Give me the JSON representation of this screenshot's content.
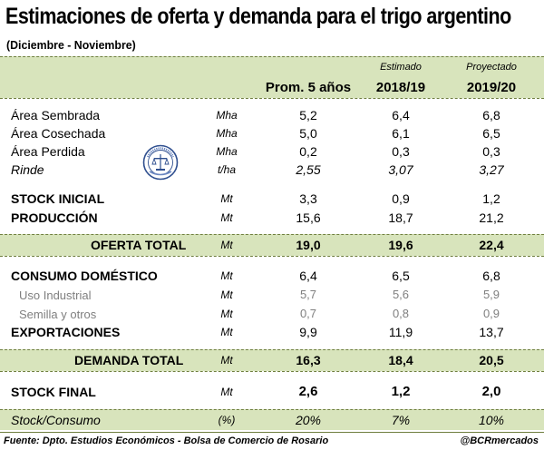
{
  "title": "Estimaciones de oferta y demanda para el trigo argentino",
  "subtitle": "(Diciembre - Noviembre)",
  "columns": {
    "c1": {
      "top": "",
      "main": "Prom. 5 años"
    },
    "c2": {
      "top": "Estimado",
      "main": "2018/19"
    },
    "c3": {
      "top": "Proyectado",
      "main": "2019/20"
    }
  },
  "rows": {
    "area_sembrada": {
      "label": "Área Sembrada",
      "unit": "Mha",
      "v1": "5,2",
      "v2": "6,4",
      "v3": "6,8"
    },
    "area_cosechada": {
      "label": "Área Cosechada",
      "unit": "Mha",
      "v1": "5,0",
      "v2": "6,1",
      "v3": "6,5"
    },
    "area_perdida": {
      "label": "Área Perdida",
      "unit": "Mha",
      "v1": "0,2",
      "v2": "0,3",
      "v3": "0,3"
    },
    "rinde": {
      "label": "Rinde",
      "unit": "t/ha",
      "v1": "2,55",
      "v2": "3,07",
      "v3": "3,27"
    },
    "stock_inicial": {
      "label": "STOCK INICIAL",
      "unit": "Mt",
      "v1": "3,3",
      "v2": "0,9",
      "v3": "1,2"
    },
    "produccion": {
      "label": "PRODUCCIÓN",
      "unit": "Mt",
      "v1": "15,6",
      "v2": "18,7",
      "v3": "21,2"
    },
    "oferta_total": {
      "label": "OFERTA TOTAL",
      "unit": "Mt",
      "v1": "19,0",
      "v2": "19,6",
      "v3": "22,4"
    },
    "consumo_domestico": {
      "label": "CONSUMO DOMÉSTICO",
      "unit": "Mt",
      "v1": "6,4",
      "v2": "6,5",
      "v3": "6,8"
    },
    "uso_industrial": {
      "label": "Uso Industrial",
      "unit": "Mt",
      "v1": "5,7",
      "v2": "5,6",
      "v3": "5,9"
    },
    "semilla_otros": {
      "label": "Semilla y otros",
      "unit": "Mt",
      "v1": "0,7",
      "v2": "0,8",
      "v3": "0,9"
    },
    "exportaciones": {
      "label": "EXPORTACIONES",
      "unit": "Mt",
      "v1": "9,9",
      "v2": "11,9",
      "v3": "13,7"
    },
    "demanda_total": {
      "label": "DEMANDA TOTAL",
      "unit": "Mt",
      "v1": "16,3",
      "v2": "18,4",
      "v3": "20,5"
    },
    "stock_final": {
      "label": "STOCK FINAL",
      "unit": "Mt",
      "v1": "2,6",
      "v2": "1,2",
      "v3": "2,0"
    },
    "stock_consumo": {
      "label": "Stock/Consumo",
      "unit": "(%)",
      "v1": "20%",
      "v2": "7%",
      "v3": "10%"
    }
  },
  "logo_icon": "bolsa-de-comercio-seal-icon",
  "colors": {
    "band": "#d8e4bc",
    "rule": "#6f7f3f",
    "muted": "#7f7f7f"
  },
  "footer": {
    "source": "Fuente: Dpto. Estudios Económicos - Bolsa de Comercio de Rosario",
    "handle": "@BCRmercados"
  }
}
